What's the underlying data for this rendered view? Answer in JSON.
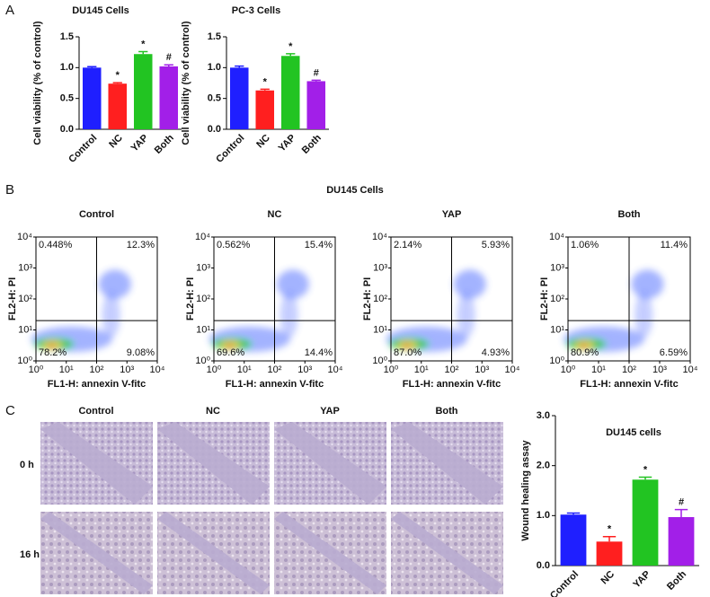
{
  "panel_labels": [
    "A",
    "B",
    "C"
  ],
  "panel_b_title": "DU145 Cells",
  "micrographs": {
    "columns": [
      "Control",
      "NC",
      "YAP",
      "Both"
    ],
    "rows": [
      "0 h",
      "16 h"
    ]
  },
  "chart_data": [
    {
      "type": "bar",
      "title": "DU145  Cells",
      "ylabel": "Cell viability (% of control)",
      "categories": [
        "Control",
        "NC",
        "YAP",
        "Both"
      ],
      "values": [
        1.0,
        0.74,
        1.22,
        1.02
      ],
      "errors": [
        0.015,
        0.015,
        0.04,
        0.025
      ],
      "annotations": [
        null,
        "*",
        "*",
        "#"
      ],
      "colors": [
        "#1f1fff",
        "#ff1f1f",
        "#22c422",
        "#a21fe8"
      ],
      "ylim": [
        0,
        1.5
      ],
      "yticks": [
        {
          "value": 0,
          "label": "0.0"
        },
        {
          "value": 0.5,
          "label": "0.5"
        },
        {
          "value": 1,
          "label": "1.0"
        },
        {
          "value": 1.5,
          "label": "1.5"
        }
      ]
    },
    {
      "type": "bar",
      "title": "PC-3 Cells",
      "ylabel": "Cell viability (% of control)",
      "categories": [
        "Control",
        "NC",
        "YAP",
        "Both"
      ],
      "values": [
        1.0,
        0.63,
        1.19,
        0.78
      ],
      "errors": [
        0.025,
        0.02,
        0.035,
        0.015
      ],
      "annotations": [
        null,
        "*",
        "*",
        "#"
      ],
      "colors": [
        "#1f1fff",
        "#ff1f1f",
        "#22c422",
        "#a21fe8"
      ],
      "ylim": [
        0,
        1.5
      ],
      "yticks": [
        {
          "value": 0,
          "label": "0.0"
        },
        {
          "value": 0.5,
          "label": "0.5"
        },
        {
          "value": 1,
          "label": "1.0"
        },
        {
          "value": 1.5,
          "label": "1.5"
        }
      ]
    },
    {
      "type": "density",
      "title": "Control",
      "xlabel": "FL1-H: annexin V-fitc",
      "ylabel": "FL2-H: PI",
      "log": true,
      "xlim": [
        1,
        10000
      ],
      "ylim": [
        1,
        10000
      ],
      "gates": [
        100,
        20
      ],
      "xticks": [
        {
          "value": 1,
          "label": "10⁰"
        },
        {
          "value": 10,
          "label": "10¹"
        },
        {
          "value": 100,
          "label": "10²"
        },
        {
          "value": 1000,
          "label": "10³"
        },
        {
          "value": 10000,
          "label": "10⁴"
        }
      ],
      "yticks": [
        {
          "value": 1,
          "label": "10⁰"
        },
        {
          "value": 10,
          "label": "10¹"
        },
        {
          "value": 100,
          "label": "10²"
        },
        {
          "value": 1000,
          "label": "10³"
        },
        {
          "value": 10000,
          "label": "10⁴"
        }
      ],
      "quadrants": [
        "0.448%",
        "12.3%",
        "78.2%",
        "9.08%"
      ]
    },
    {
      "type": "density",
      "title": "NC",
      "xlabel": "FL1-H: annexin V-fitc",
      "ylabel": "FL2-H: PI",
      "log": true,
      "xlim": [
        1,
        10000
      ],
      "ylim": [
        1,
        10000
      ],
      "gates": [
        100,
        20
      ],
      "xticks": [
        {
          "value": 1,
          "label": "10⁰"
        },
        {
          "value": 10,
          "label": "10¹"
        },
        {
          "value": 100,
          "label": "10²"
        },
        {
          "value": 1000,
          "label": "10³"
        },
        {
          "value": 10000,
          "label": "10⁴"
        }
      ],
      "yticks": [
        {
          "value": 1,
          "label": "10⁰"
        },
        {
          "value": 10,
          "label": "10¹"
        },
        {
          "value": 100,
          "label": "10²"
        },
        {
          "value": 1000,
          "label": "10³"
        },
        {
          "value": 10000,
          "label": "10⁴"
        }
      ],
      "quadrants": [
        "0.562%",
        "15.4%",
        "69.6%",
        "14.4%"
      ]
    },
    {
      "type": "density",
      "title": "YAP",
      "xlabel": "FL1-H: annexin V-fitc",
      "ylabel": "FL2-H: PI",
      "log": true,
      "xlim": [
        1,
        10000
      ],
      "ylim": [
        1,
        10000
      ],
      "gates": [
        100,
        20
      ],
      "xticks": [
        {
          "value": 1,
          "label": "10⁰"
        },
        {
          "value": 10,
          "label": "10¹"
        },
        {
          "value": 100,
          "label": "10²"
        },
        {
          "value": 1000,
          "label": "10³"
        },
        {
          "value": 10000,
          "label": "10⁴"
        }
      ],
      "yticks": [
        {
          "value": 1,
          "label": "10⁰"
        },
        {
          "value": 10,
          "label": "10¹"
        },
        {
          "value": 100,
          "label": "10²"
        },
        {
          "value": 1000,
          "label": "10³"
        },
        {
          "value": 10000,
          "label": "10⁴"
        }
      ],
      "quadrants": [
        "2.14%",
        "5.93%",
        "87.0%",
        "4.93%"
      ]
    },
    {
      "type": "density",
      "title": "Both",
      "xlabel": "FL1-H: annexin V-fitc",
      "ylabel": "FL2-H: PI",
      "log": true,
      "xlim": [
        1,
        10000
      ],
      "ylim": [
        1,
        10000
      ],
      "gates": [
        100,
        20
      ],
      "xticks": [
        {
          "value": 1,
          "label": "10⁰"
        },
        {
          "value": 10,
          "label": "10¹"
        },
        {
          "value": 100,
          "label": "10²"
        },
        {
          "value": 1000,
          "label": "10³"
        },
        {
          "value": 10000,
          "label": "10⁴"
        }
      ],
      "yticks": [
        {
          "value": 1,
          "label": "10⁰"
        },
        {
          "value": 10,
          "label": "10¹"
        },
        {
          "value": 100,
          "label": "10²"
        },
        {
          "value": 1000,
          "label": "10³"
        },
        {
          "value": 10000,
          "label": "10⁴"
        }
      ],
      "quadrants": [
        "1.06%",
        "11.4%",
        "80.9%",
        "6.59%"
      ]
    },
    {
      "type": "bar",
      "title": "DU145 cells",
      "ylabel": "Wound healing assay",
      "categories": [
        "Control",
        "NC",
        "YAP",
        "Both"
      ],
      "values": [
        1.02,
        0.48,
        1.72,
        0.97
      ],
      "errors": [
        0.03,
        0.1,
        0.05,
        0.15
      ],
      "annotations": [
        null,
        "*",
        "*",
        "#"
      ],
      "colors": [
        "#1f1fff",
        "#ff1f1f",
        "#22c422",
        "#a21fe8"
      ],
      "ylim": [
        0,
        3
      ],
      "yticks": [
        {
          "value": 0,
          "label": "0.0"
        },
        {
          "value": 1,
          "label": "1.0"
        },
        {
          "value": 2,
          "label": "2.0"
        },
        {
          "value": 3,
          "label": "3.0"
        }
      ]
    }
  ]
}
